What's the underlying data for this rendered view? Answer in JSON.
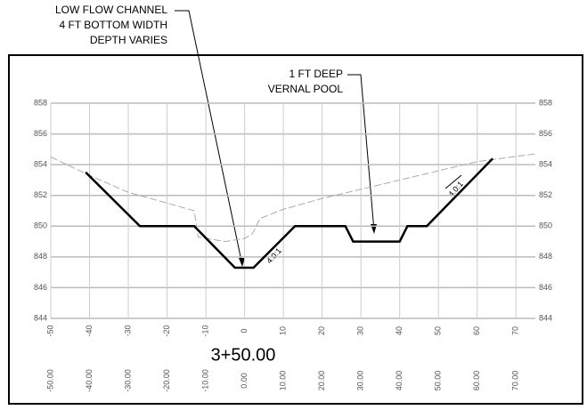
{
  "chart_data": {
    "type": "line",
    "xlim": [
      -50,
      75
    ],
    "ylim": [
      844,
      858
    ],
    "xticks": [
      -50,
      -40,
      -30,
      -20,
      -10,
      0,
      10,
      20,
      30,
      40,
      50,
      60,
      70
    ],
    "station_ticks": [
      {
        "value": -50,
        "label": "-50.00"
      },
      {
        "value": -40,
        "label": "-40.00"
      },
      {
        "value": -30,
        "label": "-30.00"
      },
      {
        "value": -20,
        "label": "-20.00"
      },
      {
        "value": -10,
        "label": "-10.00"
      },
      {
        "value": 0,
        "label": "0.00"
      },
      {
        "value": 10,
        "label": "10.00"
      },
      {
        "value": 20,
        "label": "20.00"
      },
      {
        "value": 30,
        "label": "30.00"
      },
      {
        "value": 40,
        "label": "40.00"
      },
      {
        "value": 50,
        "label": "50.00"
      },
      {
        "value": 60,
        "label": "60.00"
      },
      {
        "value": 70,
        "label": "70.00"
      }
    ],
    "yticks": [
      844,
      846,
      848,
      850,
      852,
      854,
      856,
      858
    ],
    "grid": true,
    "station": "3+50.00",
    "series": [
      {
        "color": "#aaaaaa",
        "dashed": true,
        "x": [
          -50,
          -40,
          -30,
          -20,
          -13,
          -12,
          -5,
          0,
          2,
          4,
          10,
          20,
          30,
          40,
          50,
          60,
          75
        ],
        "values": [
          854.5,
          853.3,
          852.2,
          851.5,
          851,
          849.3,
          849,
          849.2,
          849.5,
          850.5,
          851.1,
          851.8,
          852.4,
          853,
          853.6,
          854.2,
          854.7
        ]
      },
      {
        "color": "#000000",
        "dashed": false,
        "x": [
          -41,
          -27,
          -13,
          -2.5,
          2.3,
          13,
          26,
          28,
          40,
          42,
          47,
          64
        ],
        "values": [
          853.5,
          850,
          850,
          847.3,
          847.3,
          850,
          850,
          849,
          849,
          850,
          850,
          854.4
        ]
      }
    ],
    "annotations": [
      "LOW FLOW CHANNEL",
      "4 FT BOTTOM WIDTH",
      "DEPTH VARIES",
      "1 FT DEEP",
      "VERNAL POOL",
      "4.0:1",
      "4.0:1"
    ]
  }
}
